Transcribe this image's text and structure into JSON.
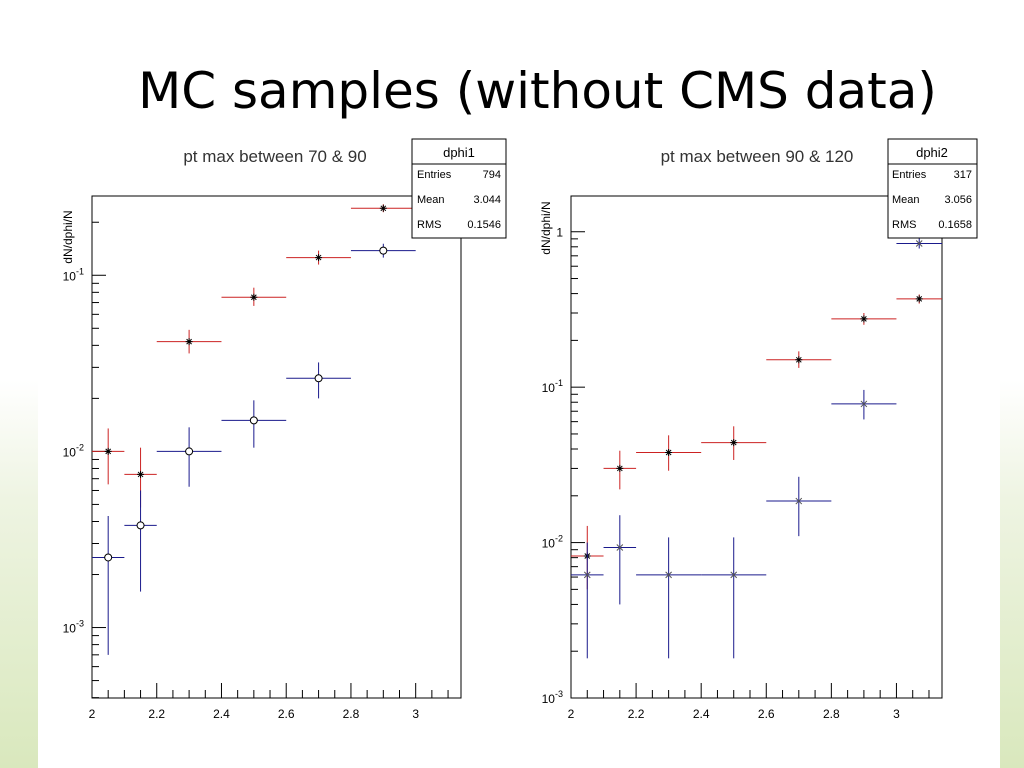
{
  "slide": {
    "title": "MC samples (without CMS data)"
  },
  "colors": {
    "red_series": "#cc2222",
    "blue_series": "#1a1a8c",
    "axis": "#000000"
  },
  "chart_data": [
    {
      "type": "scatter",
      "title": "pt max between 70 & 90",
      "ylabel": "dN/dphi/N",
      "xlabel": "",
      "xlim": [
        2.0,
        3.14
      ],
      "ylim_log10": [
        -3.4,
        -0.55
      ],
      "yscale": "log",
      "xticks": [
        "2",
        "2.2",
        "2.4",
        "2.6",
        "2.8",
        "3"
      ],
      "ytick_labels": [
        {
          "base": "10",
          "exp": "-1",
          "value": 0.1
        },
        {
          "base": "10",
          "exp": "-2",
          "value": 0.01
        },
        {
          "base": "10",
          "exp": "-3",
          "value": 0.001
        }
      ],
      "stats": {
        "name": "dphi1",
        "rows": [
          {
            "label": "Entries",
            "value": "794"
          },
          {
            "label": "Mean",
            "value": "3.044"
          },
          {
            "label": "RMS",
            "value": "0.1546"
          }
        ]
      },
      "series": [
        {
          "color": "#cc2222",
          "marker": "star",
          "points": [
            {
              "x": 2.05,
              "xerr": 0.05,
              "y": 0.01,
              "ylo": 0.0065,
              "yhi": 0.0135
            },
            {
              "x": 2.15,
              "xerr": 0.05,
              "y": 0.0074,
              "ylo": 0.0048,
              "yhi": 0.0105
            },
            {
              "x": 2.3,
              "xerr": 0.1,
              "y": 0.042,
              "ylo": 0.036,
              "yhi": 0.049
            },
            {
              "x": 2.5,
              "xerr": 0.1,
              "y": 0.075,
              "ylo": 0.067,
              "yhi": 0.085
            },
            {
              "x": 2.7,
              "xerr": 0.1,
              "y": 0.126,
              "ylo": 0.115,
              "yhi": 0.138
            },
            {
              "x": 2.9,
              "xerr": 0.1,
              "y": 0.24,
              "ylo": 0.228,
              "yhi": 0.253
            }
          ]
        },
        {
          "color": "#1a1a8c",
          "marker": "circle",
          "points": [
            {
              "x": 2.05,
              "xerr": 0.05,
              "y": 0.0025,
              "ylo": 0.0007,
              "yhi": 0.0043
            },
            {
              "x": 2.15,
              "xerr": 0.05,
              "y": 0.0038,
              "ylo": 0.0016,
              "yhi": 0.006
            },
            {
              "x": 2.3,
              "xerr": 0.1,
              "y": 0.01,
              "ylo": 0.0063,
              "yhi": 0.0137
            },
            {
              "x": 2.5,
              "xerr": 0.1,
              "y": 0.015,
              "ylo": 0.0105,
              "yhi": 0.0195
            },
            {
              "x": 2.7,
              "xerr": 0.1,
              "y": 0.026,
              "ylo": 0.02,
              "yhi": 0.032
            },
            {
              "x": 2.9,
              "xerr": 0.1,
              "y": 0.138,
              "ylo": 0.126,
              "yhi": 0.151
            }
          ]
        }
      ]
    },
    {
      "type": "scatter",
      "title": "pt max between 90 & 120",
      "ylabel": "dN/dphi/N",
      "xlabel": "",
      "xlim": [
        2.0,
        3.14
      ],
      "ylim_log10": [
        -3.0,
        0.23
      ],
      "yscale": "log",
      "xticks": [
        "2",
        "2.2",
        "2.4",
        "2.6",
        "2.8",
        "3"
      ],
      "ytick_labels": [
        {
          "base": "1",
          "exp": "",
          "value": 1
        },
        {
          "base": "10",
          "exp": "-1",
          "value": 0.1
        },
        {
          "base": "10",
          "exp": "-2",
          "value": 0.01
        },
        {
          "base": "10",
          "exp": "-3",
          "value": 0.001
        }
      ],
      "stats": {
        "name": "dphi2",
        "rows": [
          {
            "label": "Entries",
            "value": "317"
          },
          {
            "label": "Mean",
            "value": "3.056"
          },
          {
            "label": "RMS",
            "value": "0.1658"
          }
        ]
      },
      "series": [
        {
          "color": "#cc2222",
          "marker": "star",
          "points": [
            {
              "x": 2.05,
              "xerr": 0.05,
              "y": 0.0082,
              "ylo": 0.005,
              "yhi": 0.0128
            },
            {
              "x": 2.15,
              "xerr": 0.05,
              "y": 0.03,
              "ylo": 0.022,
              "yhi": 0.039
            },
            {
              "x": 2.3,
              "xerr": 0.1,
              "y": 0.038,
              "ylo": 0.029,
              "yhi": 0.049
            },
            {
              "x": 2.5,
              "xerr": 0.1,
              "y": 0.044,
              "ylo": 0.034,
              "yhi": 0.056
            },
            {
              "x": 2.7,
              "xerr": 0.1,
              "y": 0.15,
              "ylo": 0.133,
              "yhi": 0.17
            },
            {
              "x": 2.9,
              "xerr": 0.1,
              "y": 0.275,
              "ylo": 0.252,
              "yhi": 0.3
            },
            {
              "x": 3.07,
              "xerr": 0.07,
              "y": 0.37,
              "ylo": 0.345,
              "yhi": 0.395
            }
          ]
        },
        {
          "color": "#1a1a8c",
          "marker": "cross",
          "points": [
            {
              "x": 2.05,
              "xerr": 0.05,
              "y": 0.0062,
              "ylo": 0.0018,
              "yhi": 0.01
            },
            {
              "x": 2.15,
              "xerr": 0.05,
              "y": 0.0093,
              "ylo": 0.004,
              "yhi": 0.015
            },
            {
              "x": 2.3,
              "xerr": 0.1,
              "y": 0.0062,
              "ylo": 0.0018,
              "yhi": 0.0108
            },
            {
              "x": 2.5,
              "xerr": 0.1,
              "y": 0.0062,
              "ylo": 0.0018,
              "yhi": 0.0108
            },
            {
              "x": 2.7,
              "xerr": 0.1,
              "y": 0.0185,
              "ylo": 0.011,
              "yhi": 0.0265
            },
            {
              "x": 2.9,
              "xerr": 0.1,
              "y": 0.078,
              "ylo": 0.062,
              "yhi": 0.096
            },
            {
              "x": 3.07,
              "xerr": 0.07,
              "y": 0.84,
              "ylo": 0.78,
              "yhi": 0.92
            }
          ]
        }
      ]
    }
  ]
}
